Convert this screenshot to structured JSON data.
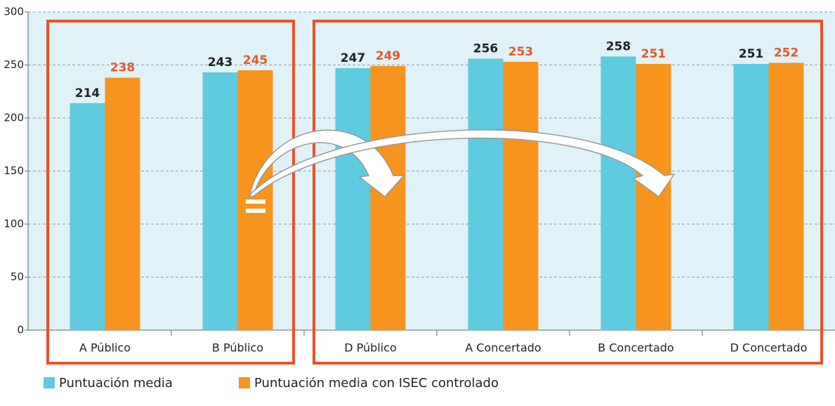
{
  "chart_data": {
    "type": "bar",
    "categories": [
      "A Público",
      "B Público",
      "D Público",
      "A Concertado",
      "B Concertado",
      "D Concertado"
    ],
    "series": [
      {
        "name": "Puntuación media",
        "color": "#5ecbe0",
        "values": [
          214,
          243,
          247,
          256,
          258,
          251
        ]
      },
      {
        "name": "Puntuación media con ISEC controlado",
        "color": "#f7941d",
        "values": [
          238,
          245,
          249,
          253,
          251,
          252
        ]
      }
    ],
    "ylim": [
      0,
      300
    ],
    "yticks": [
      0,
      50,
      100,
      150,
      200,
      250,
      300
    ],
    "grid": true
  }
}
